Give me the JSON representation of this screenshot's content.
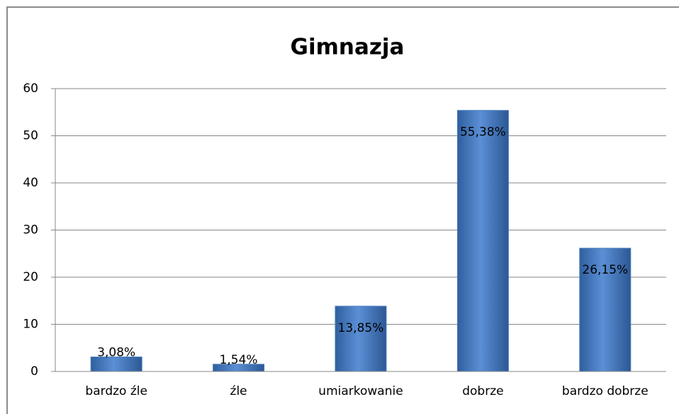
{
  "chart_data": {
    "type": "bar",
    "title": "Gimnazja",
    "categories": [
      "bardzo źle",
      "źle",
      "umiarkowanie",
      "dobrze",
      "bardzo dobrze"
    ],
    "values": [
      3.08,
      1.54,
      13.85,
      55.38,
      26.15
    ],
    "value_labels": [
      "3,08%",
      "1,54%",
      "13,85%",
      "55,38%",
      "26,15%"
    ],
    "color": "#4a7ebb",
    "ylim": [
      0,
      60
    ],
    "yticks": [
      0,
      10,
      20,
      30,
      40,
      50,
      60
    ],
    "grid": true
  }
}
